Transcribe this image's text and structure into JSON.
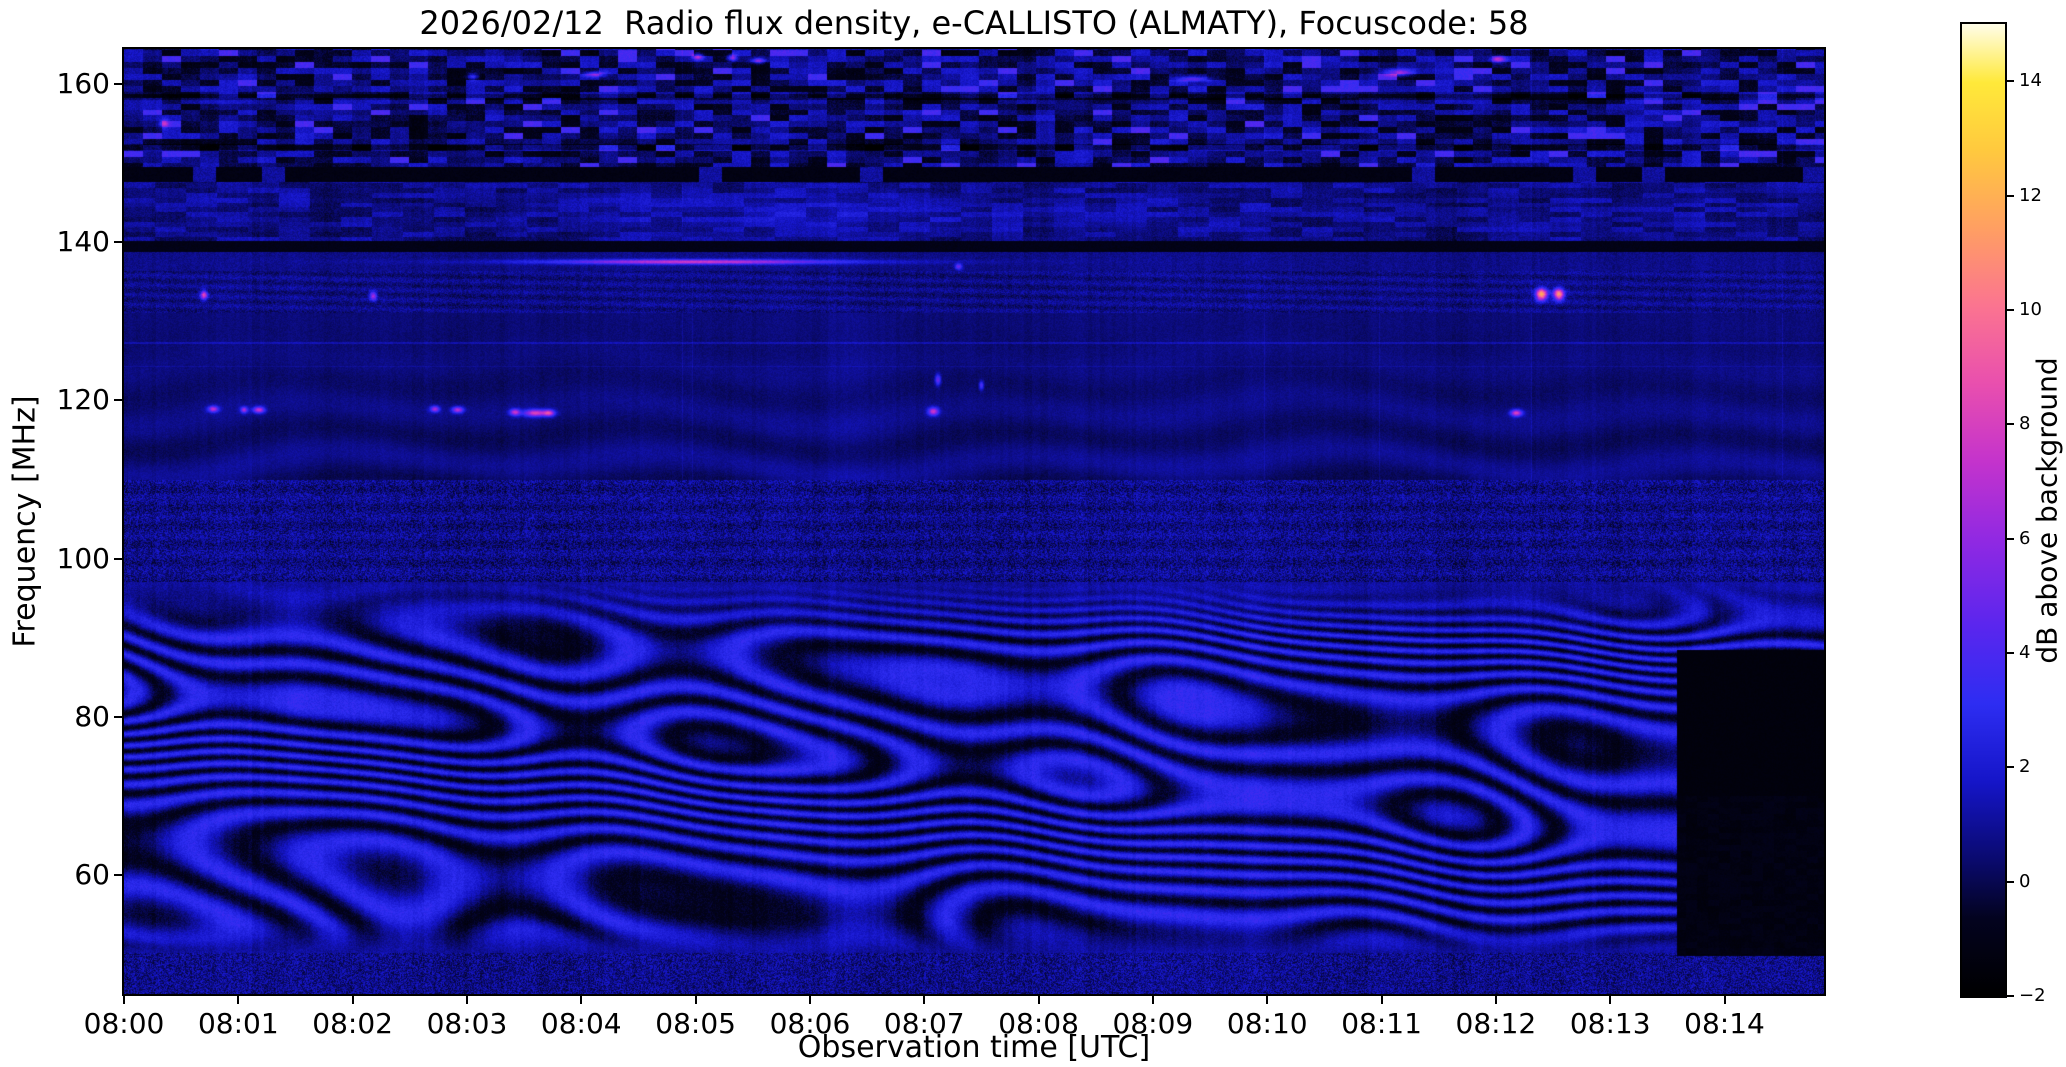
{
  "chart_data": {
    "type": "heatmap",
    "title": "2026/02/12  Radio flux density, e-CALLISTO (ALMATY), Focuscode: 58",
    "xlabel": "Observation time [UTC]",
    "ylabel": "Frequency [MHz]",
    "x_tick_labels": [
      "08:00",
      "08:01",
      "08:02",
      "08:03",
      "08:04",
      "08:05",
      "08:06",
      "08:07",
      "08:08",
      "08:09",
      "08:10",
      "08:11",
      "08:12",
      "08:13",
      "08:14"
    ],
    "x_range_minutes": [
      0,
      14.87
    ],
    "y_range_mhz": [
      45.0,
      164.4
    ],
    "y_ticks": [
      60,
      80,
      100,
      120,
      140,
      160
    ],
    "y_tick_labels": [
      "60",
      "80",
      "100",
      "120",
      "140",
      "160"
    ],
    "grid": false,
    "colorbar": {
      "label": "dB above background",
      "min": -2,
      "max": 15,
      "ticks": [
        14,
        12,
        10,
        8,
        6,
        4,
        2,
        0,
        -2
      ],
      "tick_labels": [
        "14",
        "12",
        "10",
        "8",
        "6",
        "4",
        "2",
        "0",
        "−2"
      ]
    },
    "colormap": {
      "name": "gnuplot2-like",
      "stops": [
        [
          0.0,
          "#000000"
        ],
        [
          0.08,
          "#03031f"
        ],
        [
          0.14,
          "#0a0a6e"
        ],
        [
          0.22,
          "#1515c8"
        ],
        [
          0.3,
          "#2d2df2"
        ],
        [
          0.38,
          "#5a26ee"
        ],
        [
          0.47,
          "#9129e2"
        ],
        [
          0.55,
          "#c433cc"
        ],
        [
          0.63,
          "#e94fae"
        ],
        [
          0.71,
          "#fb7490"
        ],
        [
          0.79,
          "#ff9f62"
        ],
        [
          0.87,
          "#ffc93e"
        ],
        [
          0.94,
          "#ffe93a"
        ],
        [
          1.0,
          "#fffde8"
        ]
      ]
    },
    "background_level_db": 0.8,
    "bands": {
      "ionospheric_fringes_mhz": [
        50.2,
        97.0
      ],
      "bottom_speckle_mhz": [
        45.0,
        50.2
      ],
      "fm_speckle_mhz": [
        97.0,
        110.0
      ],
      "quiet_airband_mhz": [
        110.0,
        131.0
      ],
      "mottled_mhz": [
        131.0,
        136.4
      ],
      "dark_line_mhz": [
        138.8,
        140.2
      ],
      "streaky_mhz": [
        140.2,
        147.6
      ],
      "dark_band_mhz": [
        147.6,
        149.5
      ],
      "noisy_top_mhz": [
        149.5,
        164.4
      ]
    },
    "satellite_line": {
      "f": 137.5,
      "peak_t": 5.0,
      "sigma_t": 1.15,
      "sigma_f": 0.3,
      "a": 6.0,
      "t_visible": [
        3.3,
        6.6
      ]
    },
    "dark_block": {
      "t0": 13.58,
      "f_range": [
        49.8,
        88.5
      ]
    },
    "events": [
      {
        "t": 0.7,
        "f": 133.3,
        "st": 0.03,
        "sf": 0.55,
        "a": 7.5
      },
      {
        "t": 0.78,
        "f": 118.9,
        "st": 0.045,
        "sf": 0.4,
        "a": 6.5
      },
      {
        "t": 1.05,
        "f": 118.8,
        "st": 0.03,
        "sf": 0.4,
        "a": 6.0
      },
      {
        "t": 1.18,
        "f": 118.8,
        "st": 0.05,
        "sf": 0.4,
        "a": 7.0
      },
      {
        "t": 2.18,
        "f": 133.2,
        "st": 0.03,
        "sf": 0.55,
        "a": 6.0
      },
      {
        "t": 2.72,
        "f": 118.9,
        "st": 0.04,
        "sf": 0.4,
        "a": 6.0
      },
      {
        "t": 2.92,
        "f": 118.8,
        "st": 0.05,
        "sf": 0.4,
        "a": 6.5
      },
      {
        "t": 3.42,
        "f": 118.5,
        "st": 0.045,
        "sf": 0.42,
        "a": 6.5
      },
      {
        "t": 3.6,
        "f": 118.4,
        "st": 0.1,
        "sf": 0.45,
        "a": 7.5
      },
      {
        "t": 3.72,
        "f": 118.4,
        "st": 0.05,
        "sf": 0.42,
        "a": 6.5
      },
      {
        "t": 7.08,
        "f": 118.6,
        "st": 0.045,
        "sf": 0.5,
        "a": 7.0
      },
      {
        "t": 7.12,
        "f": 122.6,
        "st": 0.025,
        "sf": 0.7,
        "a": 4.5
      },
      {
        "t": 7.3,
        "f": 136.9,
        "st": 0.03,
        "sf": 0.4,
        "a": 4.5
      },
      {
        "t": 7.5,
        "f": 121.9,
        "st": 0.02,
        "sf": 0.55,
        "a": 4.0
      },
      {
        "t": 12.18,
        "f": 118.4,
        "st": 0.05,
        "sf": 0.42,
        "a": 7.5
      },
      {
        "t": 12.4,
        "f": 133.4,
        "st": 0.05,
        "sf": 0.75,
        "a": 11.5
      },
      {
        "t": 12.55,
        "f": 133.4,
        "st": 0.045,
        "sf": 0.75,
        "a": 10.5
      },
      {
        "t": 5.02,
        "f": 163.4,
        "st": 0.045,
        "sf": 0.4,
        "a": 6.0
      },
      {
        "t": 5.32,
        "f": 163.3,
        "st": 0.04,
        "sf": 0.4,
        "a": 6.0
      },
      {
        "t": 4.12,
        "f": 161.2,
        "st": 0.09,
        "sf": 0.35,
        "a": 5.0
      },
      {
        "t": 5.55,
        "f": 162.9,
        "st": 0.06,
        "sf": 0.35,
        "a": 5.5
      },
      {
        "t": 9.35,
        "f": 160.6,
        "st": 0.15,
        "sf": 0.3,
        "a": 4.0
      },
      {
        "t": 11.15,
        "f": 161.4,
        "st": 0.12,
        "sf": 0.45,
        "a": 5.0
      },
      {
        "t": 12.02,
        "f": 163.1,
        "st": 0.06,
        "sf": 0.4,
        "a": 5.5
      },
      {
        "t": 3.05,
        "f": 160.9,
        "st": 0.05,
        "sf": 0.35,
        "a": 4.5
      },
      {
        "t": 0.35,
        "f": 155.0,
        "st": 0.04,
        "sf": 0.5,
        "a": 4.0
      }
    ]
  }
}
